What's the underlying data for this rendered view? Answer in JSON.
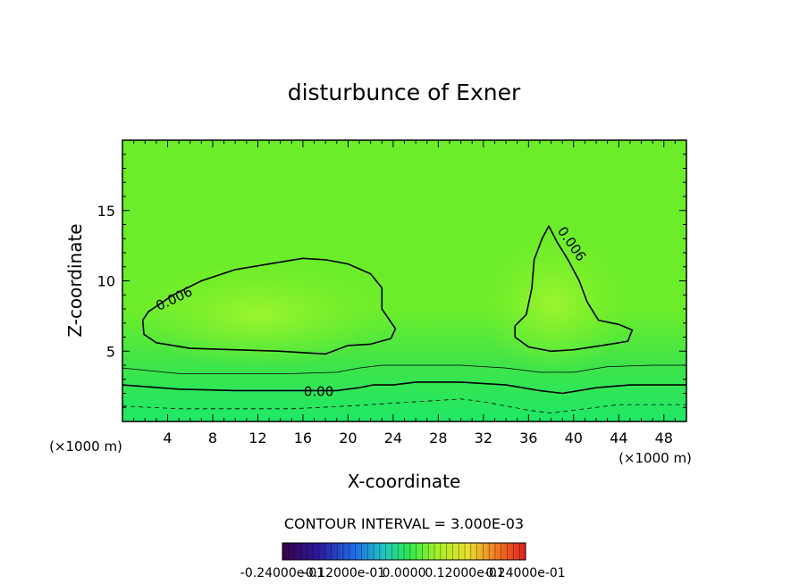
{
  "chart_data": {
    "type": "heatmap",
    "title": "disturbunce of Exner",
    "xlabel": "X-coordinate",
    "ylabel": "Z-coordinate",
    "x_unit": "(×1000 m)",
    "y_unit": "(×1000 m)",
    "xlim": [
      0,
      50
    ],
    "ylim": [
      0,
      20
    ],
    "x_ticks": [
      4,
      8,
      12,
      16,
      20,
      24,
      28,
      32,
      36,
      40,
      44,
      48
    ],
    "y_ticks": [
      5,
      10,
      15
    ],
    "grid": false,
    "contour_interval_text": "CONTOUR INTERVAL = 3.000E-03",
    "colorbar_labels": [
      "-0.24000e-01",
      "-0.12000e-01",
      "0.0000",
      "0.12000e-01",
      "0.24000e-01"
    ],
    "colorbar_range": [
      -0.024,
      0.024
    ],
    "colors": {
      "field_low": "#1ee866",
      "field_mid": "#6ced2a",
      "field_high": "#8ef52c",
      "contour": "#000000"
    },
    "contour_labels": [
      {
        "text": "0.006",
        "x": 4.6,
        "z": 8.7,
        "angle": -25
      },
      {
        "text": "0.006",
        "x": 39.8,
        "z": 12.6,
        "angle": 55
      },
      {
        "text": "0.00",
        "x": 17.4,
        "z": 2.1,
        "angle": 0
      }
    ],
    "contours": [
      {
        "level": 0.006,
        "style": "solid",
        "width": 1.6,
        "points": [
          [
            1.8,
            7.2
          ],
          [
            1.9,
            6.2
          ],
          [
            3.0,
            5.6
          ],
          [
            6.0,
            5.2
          ],
          [
            10.0,
            5.1
          ],
          [
            14.0,
            5.0
          ],
          [
            18.0,
            4.8
          ],
          [
            20.0,
            5.4
          ],
          [
            22.0,
            5.5
          ],
          [
            23.8,
            5.9
          ],
          [
            24.2,
            6.6
          ],
          [
            23.0,
            8.0
          ],
          [
            23.0,
            9.5
          ],
          [
            22.0,
            10.5
          ],
          [
            20.0,
            11.2
          ],
          [
            18.0,
            11.5
          ],
          [
            16.0,
            11.6
          ],
          [
            13.0,
            11.2
          ],
          [
            10.0,
            10.8
          ],
          [
            7.0,
            10.0
          ],
          [
            4.5,
            9.0
          ],
          [
            2.3,
            7.8
          ],
          [
            1.8,
            7.2
          ]
        ]
      },
      {
        "level": 0.006,
        "style": "solid",
        "width": 1.6,
        "points": [
          [
            34.8,
            6.8
          ],
          [
            35.8,
            7.6
          ],
          [
            36.3,
            9.5
          ],
          [
            36.5,
            11.5
          ],
          [
            37.2,
            13.0
          ],
          [
            37.8,
            13.9
          ],
          [
            38.5,
            12.8
          ],
          [
            39.5,
            11.5
          ],
          [
            40.5,
            10.0
          ],
          [
            41.2,
            8.5
          ],
          [
            42.2,
            7.2
          ],
          [
            44.0,
            6.9
          ],
          [
            45.2,
            6.5
          ],
          [
            44.8,
            5.7
          ],
          [
            42.5,
            5.4
          ],
          [
            40.0,
            5.1
          ],
          [
            38.0,
            5.0
          ],
          [
            36.0,
            5.3
          ],
          [
            34.8,
            6.0
          ],
          [
            34.8,
            6.8
          ]
        ]
      },
      {
        "level": 0.003,
        "style": "solid",
        "width": 0.8,
        "points": [
          [
            0,
            3.8
          ],
          [
            5,
            3.4
          ],
          [
            10,
            3.4
          ],
          [
            15,
            3.4
          ],
          [
            19,
            3.5
          ],
          [
            21,
            3.8
          ],
          [
            23,
            4.0
          ],
          [
            26,
            4.0
          ],
          [
            30,
            4.0
          ],
          [
            34,
            3.8
          ],
          [
            37,
            3.5
          ],
          [
            40,
            3.5
          ],
          [
            43,
            3.9
          ],
          [
            47,
            4.0
          ],
          [
            50,
            4.0
          ]
        ]
      },
      {
        "level": 0.0,
        "style": "solid",
        "width": 1.6,
        "points": [
          [
            0,
            2.6
          ],
          [
            5,
            2.3
          ],
          [
            10,
            2.2
          ],
          [
            15,
            2.2
          ],
          [
            19,
            2.2
          ],
          [
            21,
            2.4
          ],
          [
            22.2,
            2.6
          ],
          [
            24,
            2.6
          ],
          [
            26,
            2.8
          ],
          [
            30,
            2.8
          ],
          [
            34,
            2.6
          ],
          [
            37,
            2.2
          ],
          [
            39,
            2.0
          ],
          [
            42,
            2.4
          ],
          [
            45,
            2.6
          ],
          [
            50,
            2.6
          ]
        ]
      },
      {
        "level": -0.003,
        "style": "dashed",
        "width": 0.8,
        "points": [
          [
            0,
            1.1
          ],
          [
            5,
            0.9
          ],
          [
            10,
            0.9
          ],
          [
            15,
            0.9
          ],
          [
            20,
            1.1
          ],
          [
            24,
            1.3
          ],
          [
            28,
            1.5
          ],
          [
            30,
            1.6
          ],
          [
            32,
            1.4
          ],
          [
            36,
            0.8
          ],
          [
            38,
            0.6
          ],
          [
            40,
            0.8
          ],
          [
            44,
            1.2
          ],
          [
            48,
            1.2
          ],
          [
            50,
            1.2
          ]
        ]
      }
    ]
  }
}
